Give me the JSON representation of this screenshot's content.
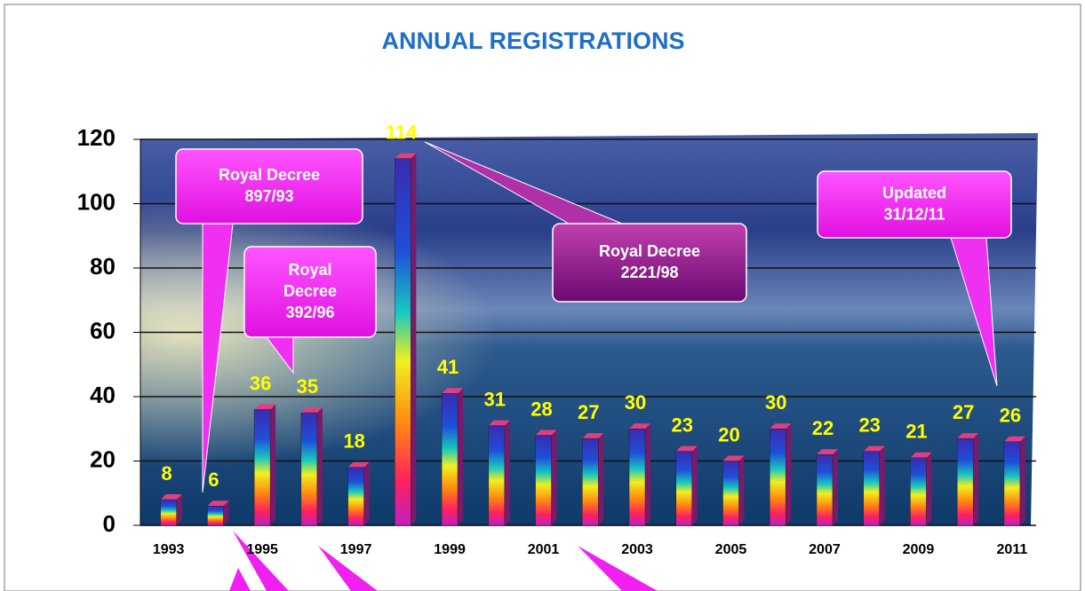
{
  "chart_data": {
    "type": "bar",
    "title": "ANNUAL REGISTRATIONS",
    "categories": [
      "1993",
      null,
      "1995",
      null,
      "1997",
      null,
      "1999",
      null,
      "2001",
      null,
      "2003",
      null,
      "2005",
      null,
      "2007",
      null,
      "2009",
      null,
      "2011"
    ],
    "values": [
      8,
      6,
      36,
      35,
      18,
      114,
      41,
      31,
      28,
      27,
      30,
      23,
      20,
      30,
      22,
      23,
      21,
      27,
      26
    ],
    "ylim": [
      0,
      120
    ],
    "yticks": [
      0,
      20,
      40,
      60,
      80,
      100,
      120
    ],
    "grid": true,
    "label_color": "#ffff00",
    "annotations": [
      {
        "lines": [
          "Royal Decree",
          "897/93"
        ]
      },
      {
        "lines": [
          "Royal",
          "Decree",
          "392/96"
        ]
      },
      {
        "lines": [
          "Royal Decree",
          "2221/98"
        ]
      },
      {
        "lines": [
          "Updated",
          "31/12/11"
        ]
      }
    ]
  }
}
